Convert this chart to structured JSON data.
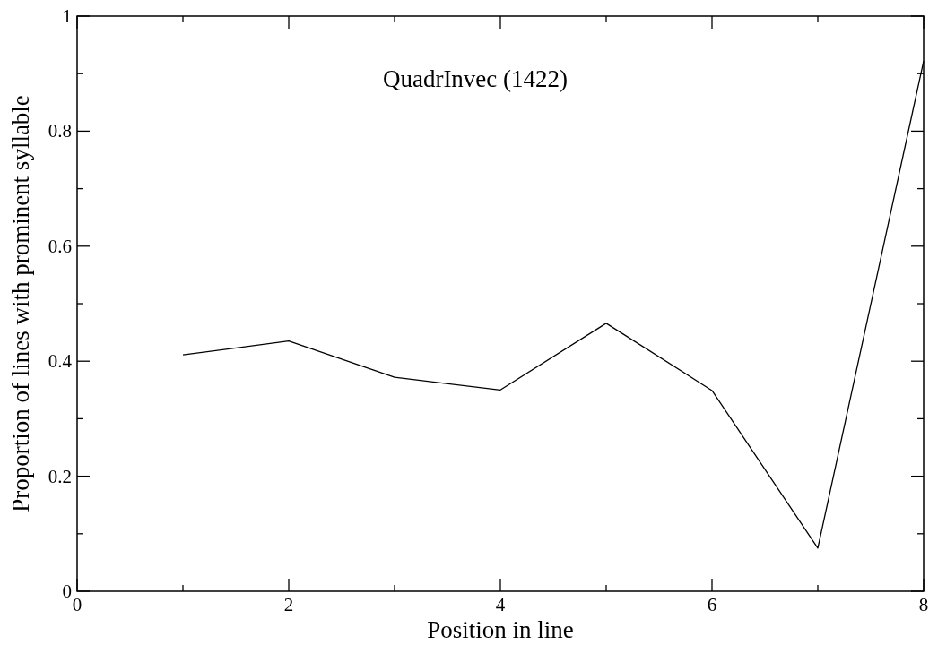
{
  "chart_data": {
    "type": "line",
    "xlabel": "Position in line",
    "ylabel": "Proportion of lines with prominent syllable",
    "annotations": [
      "QuadrInvec (1422)"
    ],
    "x": [
      1,
      2,
      3,
      4,
      5,
      6,
      7,
      8
    ],
    "series": [
      {
        "color": "#000000",
        "values": [
          0.411,
          0.435,
          0.372,
          0.35,
          0.466,
          0.349,
          0.075,
          0.922
        ]
      }
    ],
    "xlim": [
      0,
      8
    ],
    "ylim": [
      0,
      1
    ],
    "xticks": [
      0,
      {
        "value": 1,
        "label": null
      },
      2,
      {
        "value": 3,
        "label": null
      },
      4,
      {
        "value": 5,
        "label": null
      },
      6,
      {
        "value": 7,
        "label": null
      },
      8
    ],
    "yticks": [
      0,
      {
        "value": 0.1,
        "label": null
      },
      0.2,
      {
        "value": 0.3,
        "label": null
      },
      0.4,
      {
        "value": 0.5,
        "label": null
      },
      0.6,
      {
        "value": 0.7,
        "label": null
      },
      0.8,
      {
        "value": 0.9,
        "label": null
      },
      1
    ],
    "grid": false,
    "marker": "none",
    "line_style": "solid"
  }
}
